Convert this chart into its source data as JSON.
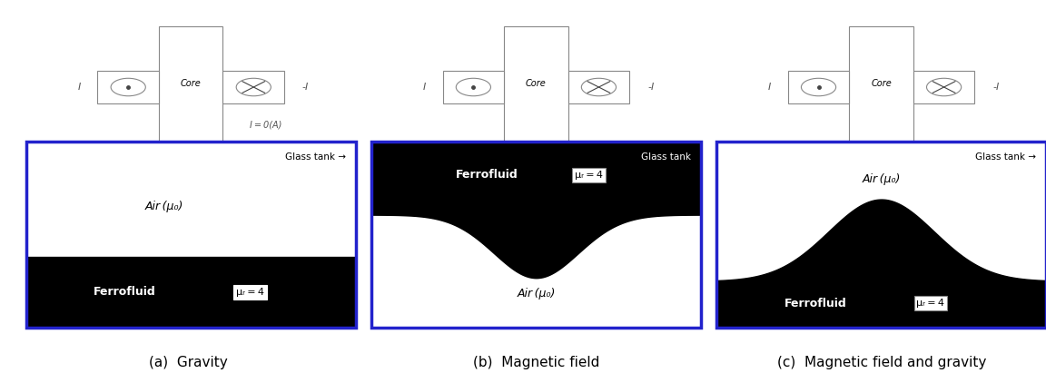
{
  "fig_width": 11.52,
  "fig_height": 4.22,
  "bg_color": "#ffffff",
  "panel_border_color": "#2222cc",
  "captions": [
    "(a)  Gravity",
    "(b)  Magnetic field",
    "(c)  Magnetic field and gravity"
  ],
  "caption_fontsize": 11,
  "glass_tank_label_arrow": "Glass tank →",
  "glass_tank_label_plain": "Glass tank",
  "air_label": "Air (μ₀)",
  "ferrofluid_label": "Ferrofluid",
  "mu_label": "μᵣ = 4",
  "core_label": "Core",
  "I_label": "I",
  "neg_I_label": "-I",
  "I_zero_label": "I = 0(A)"
}
